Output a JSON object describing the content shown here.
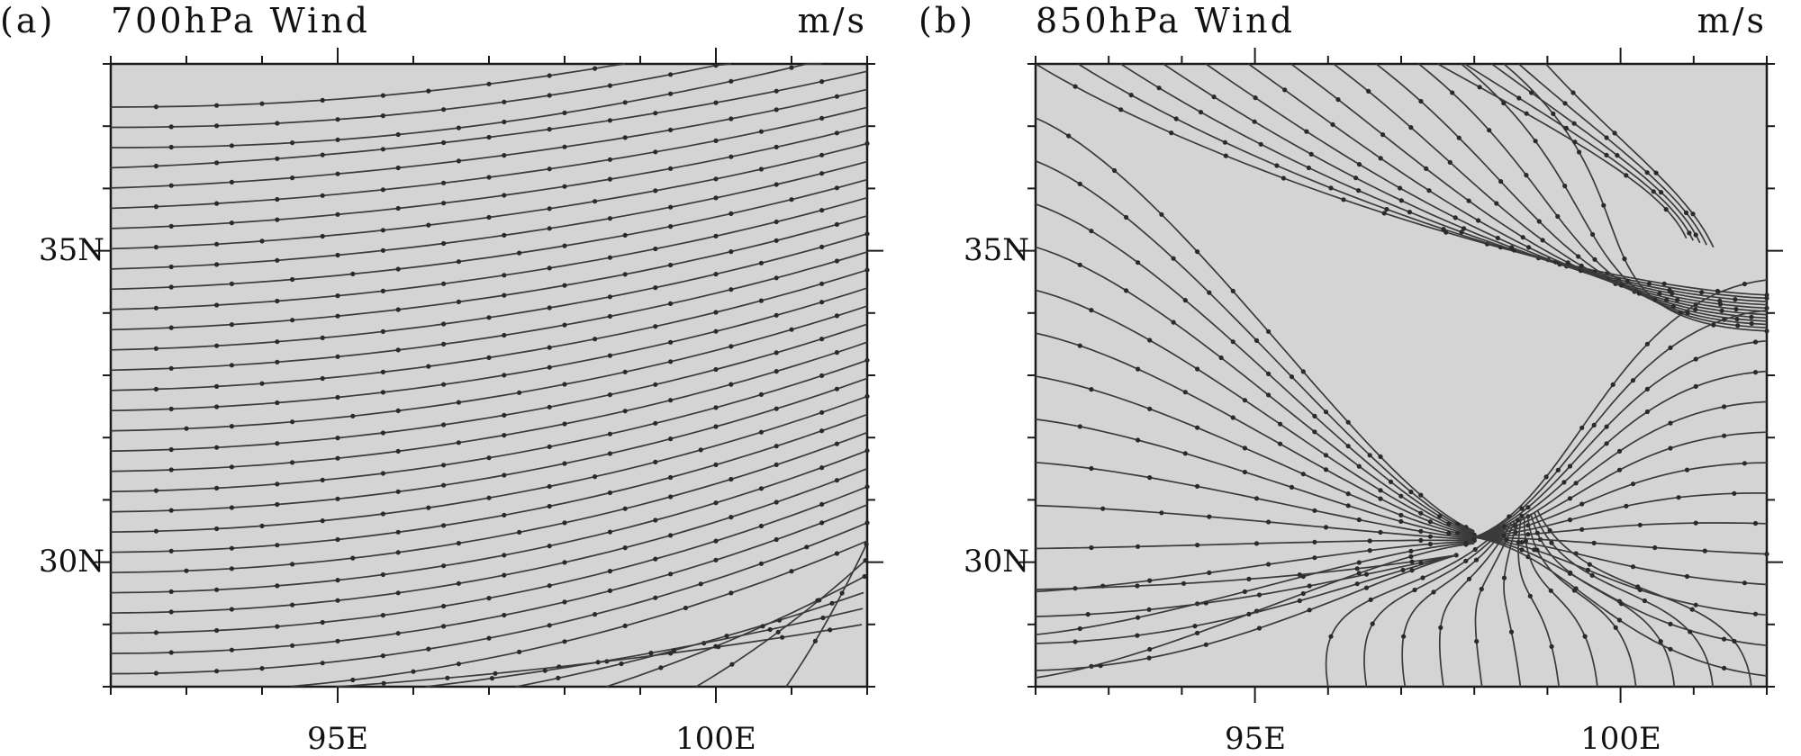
{
  "chart_data": [
    {
      "type": "streamline",
      "panel_label": "(a)",
      "title": "700hPa Wind",
      "units_label": "m/s",
      "x_ticks": [
        "95E",
        "100E"
      ],
      "y_ticks": [
        "35N",
        "30N"
      ],
      "x_tick_values": [
        95,
        100
      ],
      "y_tick_values": [
        35,
        30
      ],
      "xlim": [
        92,
        102
      ],
      "ylim": [
        28,
        38
      ],
      "pattern": "westerly",
      "streamline_count": 30,
      "colors": {
        "background": "#d4d4d4",
        "lines": "#3a3a3a"
      }
    },
    {
      "type": "streamline",
      "panel_label": "(b)",
      "title": "850hPa Wind",
      "units_label": "m/s",
      "x_ticks": [
        "95E",
        "100E"
      ],
      "y_ticks": [
        "35N",
        "30N"
      ],
      "x_tick_values": [
        95,
        100
      ],
      "y_tick_values": [
        35,
        30
      ],
      "xlim": [
        92,
        102
      ],
      "ylim": [
        28,
        38
      ],
      "pattern": "convergence",
      "colors": {
        "background": "#d4d4d4",
        "lines": "#3a3a3a"
      }
    }
  ]
}
